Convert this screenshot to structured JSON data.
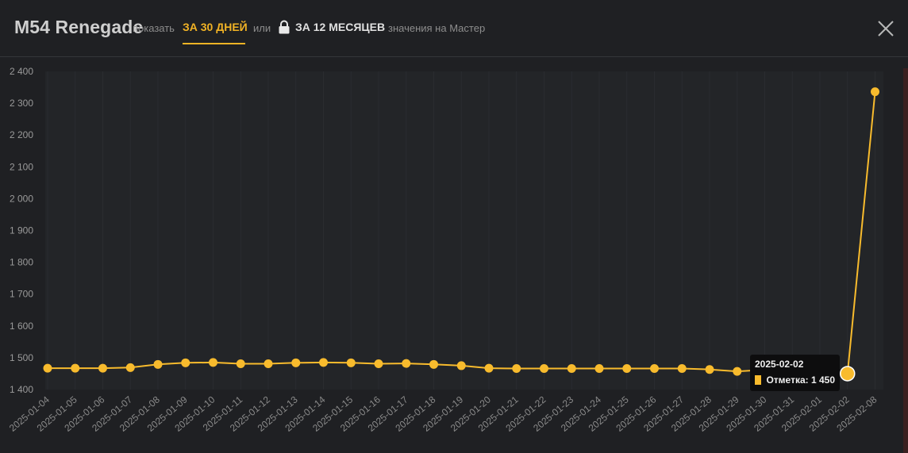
{
  "header": {
    "title": "M54 Renegade",
    "show_label": "показать",
    "tab_30_days": "ЗА 30 ДНЕЙ",
    "or_label": "или",
    "tab_12_months": "ЗА 12 МЕСЯЦЕВ",
    "note": "значения на Мастер",
    "lock_icon": "lock-icon",
    "close_icon": "close-icon"
  },
  "colors": {
    "accent": "#f2b325",
    "series": "#f8bb2d",
    "background": "#1f2023",
    "plot_background": "#232528"
  },
  "chart_data": {
    "type": "line",
    "x": [
      "2025-01-04",
      "2025-01-05",
      "2025-01-06",
      "2025-01-07",
      "2025-01-08",
      "2025-01-09",
      "2025-01-10",
      "2025-01-11",
      "2025-01-12",
      "2025-01-13",
      "2025-01-14",
      "2025-01-15",
      "2025-01-16",
      "2025-01-17",
      "2025-01-18",
      "2025-01-19",
      "2025-01-20",
      "2025-01-21",
      "2025-01-22",
      "2025-01-23",
      "2025-01-24",
      "2025-01-25",
      "2025-01-26",
      "2025-01-27",
      "2025-01-28",
      "2025-01-29",
      "2025-01-30",
      "2025-01-31",
      "2025-02-01",
      "2025-02-02",
      "2025-02-08"
    ],
    "series": [
      {
        "values": [
          1467,
          1467,
          1467,
          1469,
          1479,
          1484,
          1485,
          1481,
          1481,
          1484,
          1485,
          1484,
          1481,
          1482,
          1479,
          1475,
          1467,
          1466,
          1466,
          1466,
          1466,
          1466,
          1466,
          1466,
          1463,
          1457,
          1462,
          1458,
          1452,
          1450,
          2336
        ]
      }
    ],
    "yticks": [
      1400,
      1500,
      1600,
      1700,
      1800,
      1900,
      2000,
      2100,
      2200,
      2300,
      2400
    ],
    "ytick_labels": [
      "1 400",
      "1 500",
      "1 600",
      "1 700",
      "1 800",
      "1 900",
      "2 000",
      "2 100",
      "2 200",
      "2 300",
      "2 400"
    ],
    "ylim": [
      1400,
      2400
    ],
    "grid": true,
    "legend": "none"
  },
  "tooltip": {
    "date": "2025-02-02",
    "label": "Отметка: 1 450",
    "index": 29
  }
}
